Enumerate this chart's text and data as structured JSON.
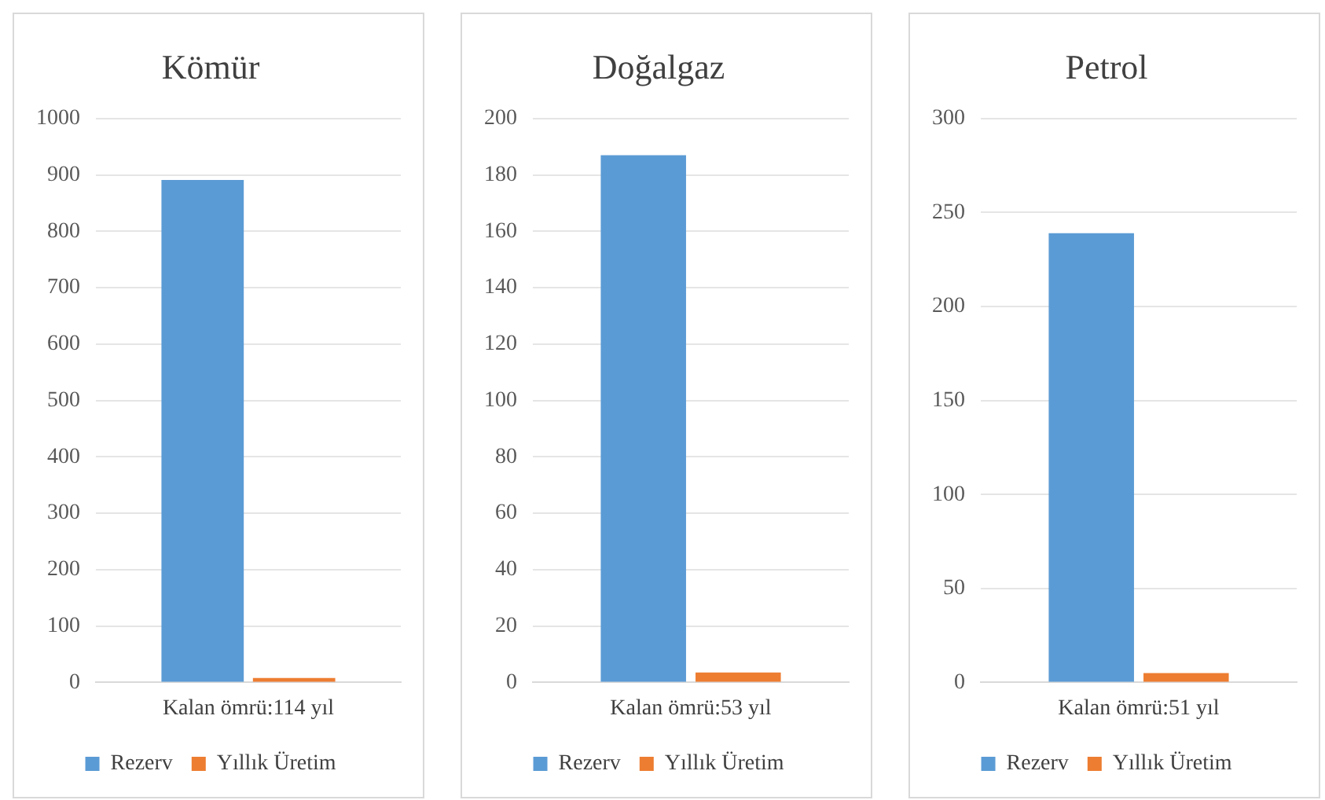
{
  "chart_data": [
    {
      "type": "bar",
      "title": "Kömür",
      "categories": [
        "Kalan ömrü:114 yıl"
      ],
      "series": [
        {
          "name": "Rezerv",
          "color": "#5b9bd5",
          "values": [
            891
          ]
        },
        {
          "name": "Yıllık Üretim",
          "color": "#ed7d31",
          "values": [
            8
          ]
        }
      ],
      "ylim": [
        0,
        1000
      ],
      "yticks": [
        0,
        100,
        200,
        300,
        400,
        500,
        600,
        700,
        800,
        900,
        1000
      ],
      "grid": "y",
      "legend": "bottom"
    },
    {
      "type": "bar",
      "title": "Doğalgaz",
      "categories": [
        "Kalan ömrü:53 yıl"
      ],
      "series": [
        {
          "name": "Rezerv",
          "color": "#5b9bd5",
          "values": [
            187
          ]
        },
        {
          "name": "Yıllık Üretim",
          "color": "#ed7d31",
          "values": [
            3.5
          ]
        }
      ],
      "ylim": [
        0,
        200
      ],
      "yticks": [
        0,
        20,
        40,
        60,
        80,
        100,
        120,
        140,
        160,
        180,
        200
      ],
      "grid": "y",
      "legend": "bottom"
    },
    {
      "type": "bar",
      "title": "Petrol",
      "categories": [
        "Kalan ömrü:51 yıl"
      ],
      "series": [
        {
          "name": "Rezerv",
          "color": "#5b9bd5",
          "values": [
            239
          ]
        },
        {
          "name": "Yıllık Üretim",
          "color": "#ed7d31",
          "values": [
            5
          ]
        }
      ],
      "ylim": [
        0,
        300
      ],
      "yticks": [
        0,
        50,
        100,
        150,
        200,
        250,
        300
      ],
      "grid": "y",
      "legend": "bottom"
    }
  ]
}
